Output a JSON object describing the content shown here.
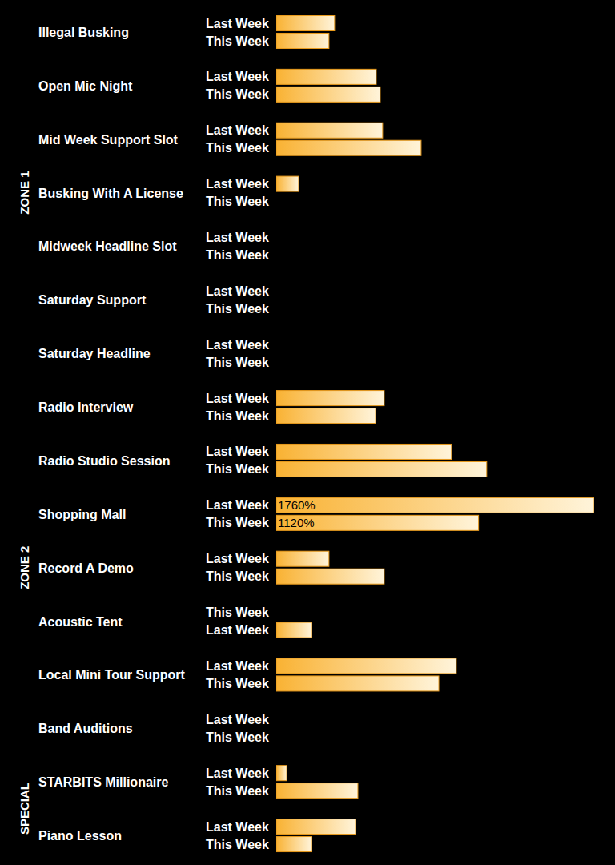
{
  "chart_data": {
    "type": "bar",
    "orientation": "horizontal",
    "data_labels": true,
    "tick_labels": false,
    "grid": false,
    "xlim": [
      0,
      1760
    ],
    "categories": [
      "Illegal Busking",
      "Open Mic Night",
      "Mid Week Support Slot",
      "Busking With A License",
      "Midweek Headline Slot",
      "Saturday Support",
      "Saturday Headline",
      "Radio Interview",
      "Radio Studio Session",
      "Shopping Mall",
      "Record A Demo",
      "Acoustic Tent",
      "Local Mini Tour Support",
      "Band Auditions",
      "STARBITS Millionaire",
      "Piano Lesson"
    ],
    "zones": [
      "ZONE 1",
      "ZONE 1",
      "ZONE 1",
      "ZONE 1",
      "ZONE 1",
      "ZONE 1",
      "ZONE 1",
      "ZONE 2",
      "ZONE 2",
      "ZONE 2",
      "ZONE 2",
      "ZONE 2",
      "ZONE 2",
      "ZONE 2",
      "SPECIAL",
      "SPECIAL"
    ],
    "row_labels": [
      [
        "Last Week",
        "This Week"
      ],
      [
        "Last Week",
        "This Week"
      ],
      [
        "Last Week",
        "This Week"
      ],
      [
        "Last Week",
        "This Week"
      ],
      [
        "Last Week",
        "This Week"
      ],
      [
        "Last Week",
        "This Week"
      ],
      [
        "Last Week",
        "This Week"
      ],
      [
        "Last Week",
        "This Week"
      ],
      [
        "Last Week",
        "This Week"
      ],
      [
        "Last Week",
        "This Week"
      ],
      [
        "Last Week",
        "This Week"
      ],
      [
        "This Week",
        "Last Week"
      ],
      [
        "Last Week",
        "This Week"
      ],
      [
        "Last Week",
        "This Week"
      ],
      [
        "Last Week",
        "This Week"
      ],
      [
        "Last Week",
        "This Week"
      ]
    ],
    "series": [
      {
        "name": "Last Week",
        "color": "#f9b233",
        "values": [
          323,
          554,
          589,
          124,
          0,
          0,
          0,
          598,
          970,
          1760,
          292,
          195,
          997,
          0,
          58,
          439
        ],
        "value_labels": [
          null,
          null,
          null,
          null,
          null,
          null,
          null,
          null,
          null,
          "1760%",
          null,
          null,
          null,
          null,
          null,
          null
        ]
      },
      {
        "name": "This Week",
        "color": "#f9b233",
        "values": [
          292,
          576,
          802,
          0,
          0,
          0,
          0,
          550,
          1165,
          1120,
          598,
          0,
          900,
          0,
          452,
          195
        ],
        "value_labels": [
          null,
          null,
          null,
          null,
          null,
          null,
          null,
          null,
          null,
          "1120%",
          null,
          null,
          null,
          null,
          null,
          null
        ]
      }
    ]
  }
}
